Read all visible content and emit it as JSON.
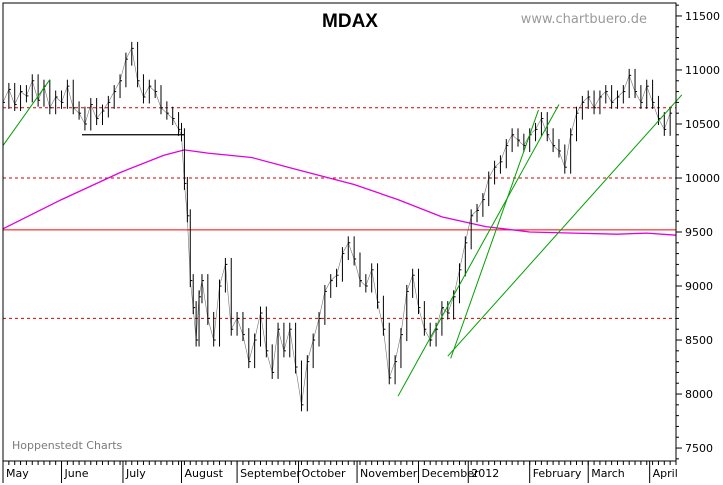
{
  "chart_data": {
    "type": "line",
    "title": "MDAX",
    "watermark": "www.chartbuero.de",
    "source": "Hoppenstedt Charts",
    "xlabel": "",
    "ylabel": "",
    "ylim": [
      7380,
      11620
    ],
    "y_ticks": [
      {
        "label": "11500",
        "value": 11500
      },
      {
        "label": "11000",
        "value": 11000
      },
      {
        "label": "10500",
        "value": 10500
      },
      {
        "label": "10000",
        "value": 10000
      },
      {
        "label": "9500",
        "value": 9500
      },
      {
        "label": "9000",
        "value": 9000
      },
      {
        "label": "8500",
        "value": 8500
      },
      {
        "label": "8000",
        "value": 8000
      },
      {
        "label": "7500",
        "value": 7500
      }
    ],
    "x_labels": [
      "May",
      "June",
      "July",
      "August",
      "September",
      "October",
      "November",
      "December",
      "2012",
      "February",
      "March",
      "April"
    ],
    "x_domain": [
      0,
      230
    ],
    "month_starts": [
      0,
      20,
      41,
      61,
      80,
      101,
      121,
      142,
      159,
      180,
      200,
      221
    ],
    "grid": false,
    "legend": "none",
    "colors": {
      "price": "#000000",
      "moving_average": "#e000e0",
      "support_line": "#ff0000",
      "resistance_dashed": "#d00000",
      "trend_lines": "#00a000",
      "pattern_line": "#000000"
    },
    "horizontal_levels": [
      {
        "value": 10650,
        "style": "dashed"
      },
      {
        "value": 10000,
        "style": "dashed"
      },
      {
        "value": 9520,
        "style": "solid"
      },
      {
        "value": 8700,
        "style": "dashed"
      }
    ],
    "pattern_line": {
      "x": [
        27,
        62
      ],
      "y": [
        10400,
        10400
      ]
    },
    "trend_lines": [
      {
        "x": [
          0,
          16
        ],
        "y": [
          10300,
          10910
        ]
      },
      {
        "x": [
          135,
          190
        ],
        "y": [
          7980,
          10680
        ]
      },
      {
        "x": [
          153,
          183
        ],
        "y": [
          8330,
          10630
        ]
      },
      {
        "x": [
          152,
          232
        ],
        "y": [
          8350,
          10770
        ]
      }
    ],
    "moving_average": {
      "x": [
        0,
        20,
        40,
        55,
        62,
        70,
        85,
        100,
        120,
        135,
        150,
        165,
        180,
        195,
        210,
        220,
        230
      ],
      "y": [
        9530,
        9800,
        10050,
        10210,
        10260,
        10230,
        10190,
        10080,
        9940,
        9800,
        9640,
        9550,
        9500,
        9490,
        9480,
        9490,
        9470
      ]
    },
    "price_series": {
      "name": "",
      "x": [
        0,
        2,
        4,
        6,
        8,
        10,
        12,
        14,
        16,
        18,
        20,
        22,
        24,
        26,
        28,
        30,
        32,
        34,
        36,
        38,
        40,
        42,
        44,
        46,
        48,
        50,
        52,
        54,
        56,
        58,
        60,
        61,
        62,
        63,
        64,
        65,
        66,
        67,
        68,
        70,
        72,
        74,
        76,
        78,
        80,
        82,
        84,
        86,
        88,
        90,
        92,
        94,
        96,
        98,
        100,
        102,
        104,
        106,
        108,
        110,
        112,
        114,
        116,
        118,
        120,
        122,
        124,
        126,
        128,
        130,
        132,
        134,
        136,
        138,
        140,
        142,
        144,
        146,
        148,
        150,
        152,
        154,
        156,
        158,
        160,
        162,
        164,
        166,
        168,
        170,
        172,
        174,
        176,
        178,
        180,
        182,
        184,
        186,
        188,
        190,
        192,
        194,
        196,
        198,
        200,
        202,
        204,
        206,
        208,
        210,
        212,
        214,
        216,
        218,
        220,
        222,
        224,
        226,
        228
      ],
      "y": [
        10700,
        10820,
        10680,
        10800,
        10760,
        10900,
        10720,
        10850,
        10650,
        10750,
        10700,
        10850,
        10650,
        10600,
        10500,
        10680,
        10550,
        10620,
        10700,
        10800,
        10900,
        11100,
        11200,
        10900,
        10750,
        10850,
        10800,
        10650,
        10600,
        10550,
        10450,
        10400,
        9950,
        9650,
        9050,
        8800,
        8500,
        8900,
        9050,
        8700,
        8500,
        9000,
        9200,
        8600,
        8700,
        8550,
        8300,
        8500,
        8750,
        8400,
        8200,
        8600,
        8400,
        8600,
        8250,
        7900,
        8300,
        8500,
        8700,
        8950,
        9050,
        9100,
        9300,
        9400,
        9250,
        9050,
        9000,
        9150,
        8850,
        8600,
        8150,
        8300,
        8550,
        8950,
        9100,
        8800,
        8600,
        8500,
        8600,
        8800,
        8750,
        8900,
        9150,
        9400,
        9650,
        9700,
        9800,
        10000,
        10100,
        10150,
        10300,
        10400,
        10350,
        10300,
        10400,
        10450,
        10550,
        10400,
        10300,
        10250,
        10100,
        10400,
        10600,
        10700,
        10750,
        10650,
        10750,
        10800,
        10700,
        10750,
        10800,
        10950,
        10800,
        10700,
        10850,
        10700,
        10550,
        10450,
        10600
      ]
    }
  }
}
